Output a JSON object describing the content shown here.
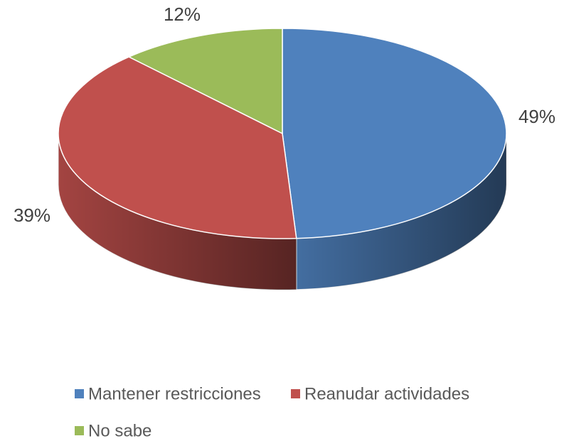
{
  "chart_data": {
    "type": "pie",
    "categories": [
      "Mantener restricciones",
      "Reanudar actividades",
      "No sabe"
    ],
    "values": [
      49,
      39,
      12
    ],
    "value_labels": [
      "49%",
      "39%",
      "12%"
    ],
    "colors": [
      "#4f81bd",
      "#c0504d",
      "#9bbb59"
    ],
    "legend": "bottom"
  }
}
